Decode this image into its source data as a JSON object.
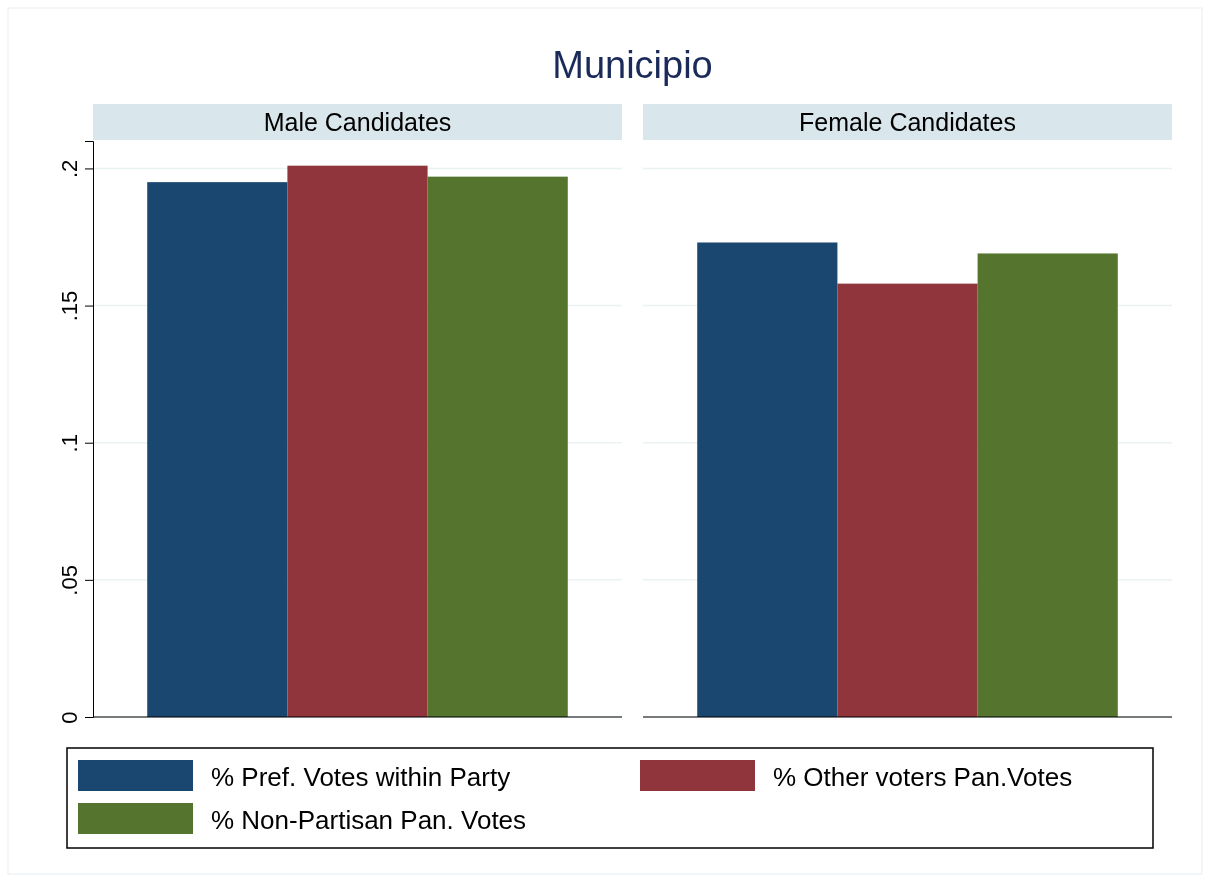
{
  "chart_data": {
    "type": "bar",
    "title": "Municipio",
    "categories": [
      "Male Candidates",
      "Female Candidates"
    ],
    "series": [
      {
        "name": "% Pref. Votes within Party",
        "color": "#1a476f",
        "values": [
          0.195,
          0.173
        ]
      },
      {
        "name": "% Other voters Pan.Votes",
        "color": "#90353b",
        "values": [
          0.201,
          0.158
        ]
      },
      {
        "name": "% Non-Partisan Pan. Votes",
        "color": "#55752f",
        "values": [
          0.197,
          0.169
        ]
      }
    ],
    "ylim": [
      0,
      0.21
    ],
    "yticks": [
      0,
      {
        "value": 0.05,
        "label": ".05"
      },
      {
        "value": 0.1,
        "label": ".1"
      },
      {
        "value": 0.15,
        "label": ".15"
      },
      {
        "value": 0.2,
        "label": ".2"
      }
    ],
    "grid": "y",
    "legend": "bottom"
  }
}
